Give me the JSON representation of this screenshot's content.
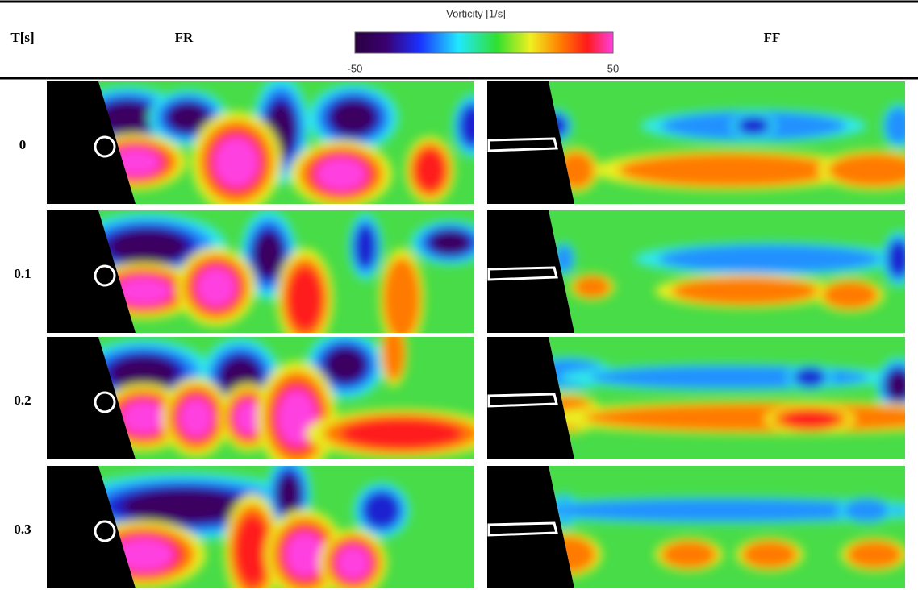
{
  "header": {
    "time_label": "T[s]",
    "left_label": "FR",
    "right_label": "FF"
  },
  "colorbar": {
    "title": "Vorticity [1/s]",
    "ticks": [
      -50,
      50
    ]
  },
  "rows": [
    "0",
    "0.1",
    "0.2",
    "0.3"
  ]
}
